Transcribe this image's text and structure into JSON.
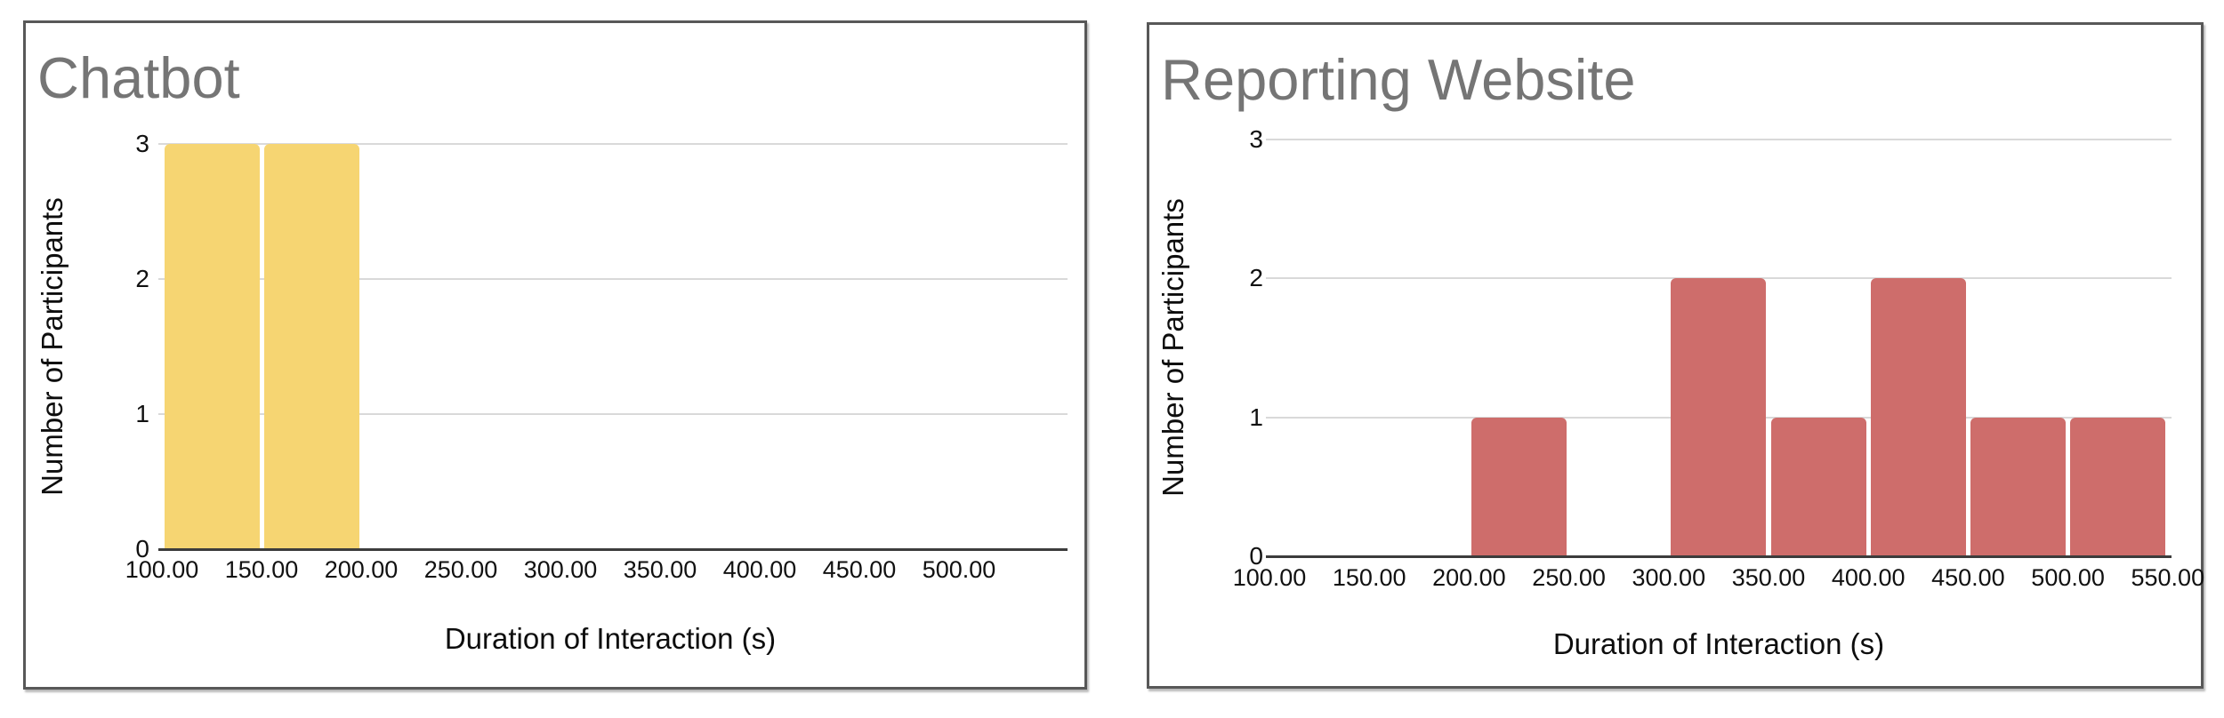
{
  "page": {
    "background_color": "#ffffff",
    "card_border_color": "#585858",
    "gridline_color": "#d9d9d9",
    "axis_line_color": "#3c3c3c",
    "title_color": "#757575",
    "tick_text_color": "#111111"
  },
  "chart_data": [
    {
      "type": "bar",
      "subtype": "histogram",
      "title": "Chatbot",
      "xlabel": "Duration of Interaction (s)",
      "ylabel": "Number of Participants",
      "bar_color": "#F6D572",
      "x_range": [
        100,
        550
      ],
      "bin_width": 50,
      "ylim": [
        0,
        3
      ],
      "y_ticks": [
        0,
        1,
        2,
        3
      ],
      "grid": "horizontal",
      "legend": "none",
      "x_tick_labels": [
        "100.00",
        "150.00",
        "200.00",
        "250.00",
        "300.00",
        "350.00",
        "400.00",
        "450.00",
        "500.00"
      ],
      "categories": [
        "100-150",
        "150-200",
        "200-250",
        "250-300",
        "300-350",
        "350-400",
        "400-450",
        "450-500",
        "500-550"
      ],
      "values": [
        3,
        3,
        0,
        0,
        0,
        0,
        0,
        0,
        0
      ]
    },
    {
      "type": "bar",
      "subtype": "histogram",
      "title": "Reporting Website",
      "xlabel": "Duration of Interaction (s)",
      "ylabel": "Number of Participants",
      "bar_color": "#CE6D6B",
      "x_range": [
        100,
        550
      ],
      "bin_width": 50,
      "ylim": [
        0,
        3
      ],
      "y_ticks": [
        0,
        1,
        2,
        3
      ],
      "grid": "horizontal",
      "legend": "none",
      "x_tick_labels": [
        "100.00",
        "150.00",
        "200.00",
        "250.00",
        "300.00",
        "350.00",
        "400.00",
        "450.00",
        "500.00",
        "550.00"
      ],
      "categories": [
        "100-150",
        "150-200",
        "200-250",
        "250-300",
        "300-350",
        "350-400",
        "400-450",
        "450-500",
        "500-550"
      ],
      "values": [
        0,
        0,
        1,
        0,
        2,
        1,
        2,
        1,
        1
      ]
    }
  ]
}
